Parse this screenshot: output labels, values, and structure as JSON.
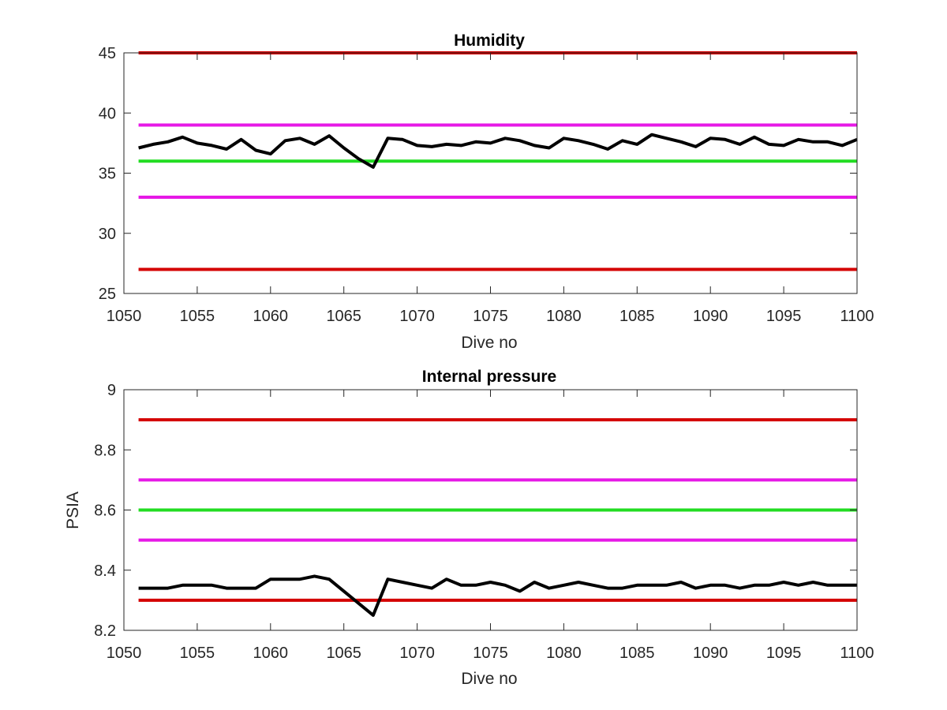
{
  "chart_data": [
    {
      "type": "line",
      "title": "Humidity",
      "xlabel": "Dive no",
      "ylabel": "",
      "xlim": [
        1050,
        1100
      ],
      "ylim": [
        25,
        45
      ],
      "xticks": [
        1050,
        1055,
        1060,
        1065,
        1070,
        1075,
        1080,
        1085,
        1090,
        1095,
        1100
      ],
      "xtick_labels": [
        "1050",
        "1055",
        "1060",
        "1065",
        "1070",
        "1075",
        "1080",
        "1085",
        "1090",
        "1095",
        "1100"
      ],
      "yticks": [
        25,
        30,
        35,
        40,
        45
      ],
      "ytick_labels": [
        "25",
        "30",
        "35",
        "40",
        "45"
      ],
      "grid": false,
      "thresholds": [
        {
          "value": 45,
          "color": "#d40000"
        },
        {
          "value": 39,
          "color": "#e619e6"
        },
        {
          "value": 36,
          "color": "#22dd22"
        },
        {
          "value": 33,
          "color": "#e619e6"
        },
        {
          "value": 27,
          "color": "#d40000"
        }
      ],
      "series": [
        {
          "color": "#000000",
          "x": [
            1051,
            1052,
            1053,
            1054,
            1055,
            1056,
            1057,
            1058,
            1059,
            1060,
            1061,
            1062,
            1063,
            1064,
            1065,
            1066,
            1067,
            1068,
            1069,
            1070,
            1071,
            1072,
            1073,
            1074,
            1075,
            1076,
            1077,
            1078,
            1079,
            1080,
            1081,
            1082,
            1083,
            1084,
            1085,
            1086,
            1087,
            1088,
            1089,
            1090,
            1091,
            1092,
            1093,
            1094,
            1095,
            1096,
            1097,
            1098,
            1099,
            1100
          ],
          "y": [
            37.1,
            37.4,
            37.6,
            38.0,
            37.5,
            37.3,
            37.0,
            37.8,
            36.9,
            36.6,
            37.7,
            37.9,
            37.4,
            38.1,
            37.1,
            36.2,
            35.5,
            37.9,
            37.8,
            37.3,
            37.2,
            37.4,
            37.3,
            37.6,
            37.5,
            37.9,
            37.7,
            37.3,
            37.1,
            37.9,
            37.7,
            37.4,
            37.0,
            37.7,
            37.4,
            38.2,
            37.9,
            37.6,
            37.2,
            37.9,
            37.8,
            37.4,
            38.0,
            37.4,
            37.3,
            37.8,
            37.6,
            37.6,
            37.3,
            37.8
          ]
        }
      ]
    },
    {
      "type": "line",
      "title": "Internal pressure",
      "xlabel": "Dive no",
      "ylabel": "PSIA",
      "xlim": [
        1050,
        1100
      ],
      "ylim": [
        8.2,
        9
      ],
      "xticks": [
        1050,
        1055,
        1060,
        1065,
        1070,
        1075,
        1080,
        1085,
        1090,
        1095,
        1100
      ],
      "xtick_labels": [
        "1050",
        "1055",
        "1060",
        "1065",
        "1070",
        "1075",
        "1080",
        "1085",
        "1090",
        "1095",
        "1100"
      ],
      "yticks": [
        8.2,
        8.4,
        8.6,
        8.8,
        9
      ],
      "ytick_labels": [
        "8.2",
        "8.4",
        "8.6",
        "8.8",
        "9"
      ],
      "grid": false,
      "thresholds": [
        {
          "value": 8.9,
          "color": "#d40000"
        },
        {
          "value": 8.7,
          "color": "#e619e6"
        },
        {
          "value": 8.6,
          "color": "#22dd22"
        },
        {
          "value": 8.5,
          "color": "#e619e6"
        },
        {
          "value": 8.3,
          "color": "#d40000"
        }
      ],
      "series": [
        {
          "color": "#000000",
          "x": [
            1051,
            1052,
            1053,
            1054,
            1055,
            1056,
            1057,
            1058,
            1059,
            1060,
            1061,
            1062,
            1063,
            1064,
            1065,
            1066,
            1067,
            1068,
            1069,
            1070,
            1071,
            1072,
            1073,
            1074,
            1075,
            1076,
            1077,
            1078,
            1079,
            1080,
            1081,
            1082,
            1083,
            1084,
            1085,
            1086,
            1087,
            1088,
            1089,
            1090,
            1091,
            1092,
            1093,
            1094,
            1095,
            1096,
            1097,
            1098,
            1099,
            1100
          ],
          "y": [
            8.34,
            8.34,
            8.34,
            8.35,
            8.35,
            8.35,
            8.34,
            8.34,
            8.34,
            8.37,
            8.37,
            8.37,
            8.38,
            8.37,
            8.33,
            8.29,
            8.25,
            8.37,
            8.36,
            8.35,
            8.34,
            8.37,
            8.35,
            8.35,
            8.36,
            8.35,
            8.33,
            8.36,
            8.34,
            8.35,
            8.36,
            8.35,
            8.34,
            8.34,
            8.35,
            8.35,
            8.35,
            8.36,
            8.34,
            8.35,
            8.35,
            8.34,
            8.35,
            8.35,
            8.36,
            8.35,
            8.36,
            8.35,
            8.35,
            8.35
          ]
        }
      ]
    }
  ]
}
